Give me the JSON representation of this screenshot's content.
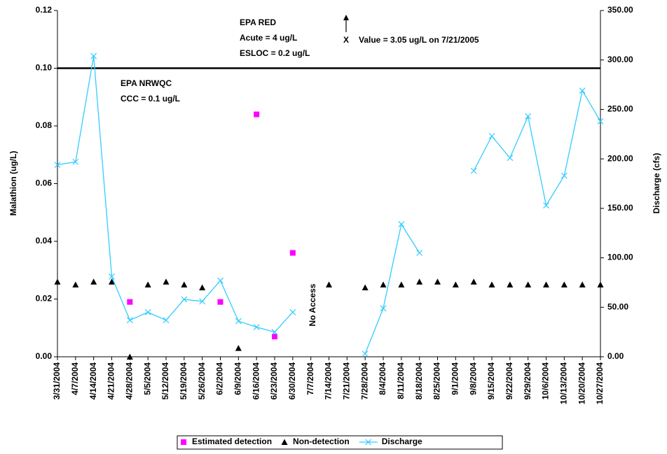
{
  "chart_data": {
    "type": "line",
    "categories": [
      "3/31/2004",
      "4/7/2004",
      "4/14/2004",
      "4/21/2004",
      "4/28/2004",
      "5/5/2004",
      "5/12/2004",
      "5/19/2004",
      "5/26/2004",
      "6/2/2004",
      "6/9/2004",
      "6/16/2004",
      "6/23/2004",
      "6/30/2004",
      "7/7/2004",
      "7/14/2004",
      "7/21/2004",
      "7/28/2004",
      "8/4/2004",
      "8/11/2004",
      "8/18/2004",
      "8/25/2004",
      "9/1/2004",
      "9/8/2004",
      "9/15/2004",
      "9/22/2004",
      "9/29/2004",
      "10/6/2004",
      "10/13/2004",
      "10/20/2004",
      "10/27/2004"
    ],
    "ylabel": "Malathion (ug/L)",
    "y2label": "Discharge (cfs)",
    "ylim": [
      0,
      0.12
    ],
    "yticks": [
      {
        "value": 0,
        "label": "0.00"
      },
      {
        "value": 0.02,
        "label": "0.02"
      },
      {
        "value": 0.04,
        "label": "0.04"
      },
      {
        "value": 0.06,
        "label": "0.06"
      },
      {
        "value": 0.08,
        "label": "0.08"
      },
      {
        "value": 0.1,
        "label": "0.10"
      },
      {
        "value": 0.12,
        "label": "0.12"
      }
    ],
    "y2lim": [
      0,
      350
    ],
    "y2ticks": [
      {
        "value": 0,
        "label": "0.00"
      },
      {
        "value": 50,
        "label": "50.00"
      },
      {
        "value": 100,
        "label": "100.00"
      },
      {
        "value": 150,
        "label": "150.00"
      },
      {
        "value": 200,
        "label": "200.00"
      },
      {
        "value": 250,
        "label": "250.00"
      },
      {
        "value": 300,
        "label": "300.00"
      },
      {
        "value": 350,
        "label": "350.00"
      }
    ],
    "series": [
      {
        "name": "Estimated detection",
        "color": "#ff00ff",
        "marker": "square",
        "line": false,
        "values": [
          null,
          null,
          null,
          null,
          0.019,
          null,
          null,
          null,
          null,
          0.019,
          null,
          0.084,
          0.007,
          0.036,
          null,
          null,
          null,
          null,
          null,
          null,
          null,
          null,
          null,
          null,
          null,
          null,
          null,
          null,
          null,
          null,
          null
        ]
      },
      {
        "name": "Non-detection",
        "color": "#000000",
        "marker": "triangle",
        "line": false,
        "values": [
          0.026,
          0.025,
          0.026,
          0.026,
          0,
          0.025,
          0.026,
          0.025,
          0.024,
          null,
          0.003,
          null,
          null,
          null,
          null,
          0.025,
          null,
          0.024,
          0.025,
          0.025,
          0.026,
          0.026,
          0.025,
          0.026,
          0.025,
          0.025,
          0.025,
          0.025,
          0.025,
          0.025,
          0.025
        ]
      },
      {
        "name": "Discharge",
        "color": "#33ccff",
        "marker": "x",
        "line": true,
        "axis": "y2",
        "values": [
          194,
          197,
          304,
          81,
          37,
          45,
          37,
          58,
          56,
          77,
          36,
          30,
          25,
          45,
          null,
          null,
          null,
          3,
          49,
          134,
          105,
          null,
          null,
          188,
          223,
          201,
          243,
          153,
          183,
          269,
          238
        ]
      }
    ],
    "reference_line": {
      "value": 0.1,
      "color": "#000000"
    },
    "annotations": {
      "epa_red": "EPA RED",
      "acute": "Acute = 4 ug/L",
      "esloc": "ESLOC = 0.2 ug/L",
      "x_mark": "X",
      "max_value": "Value = 3.05 ug/L on 7/21/2005",
      "epa_nrwqc": "EPA NRWQC",
      "ccc": "CCC = 0.1 ug/L",
      "no_access": "No Access"
    },
    "legend": "bottom"
  }
}
